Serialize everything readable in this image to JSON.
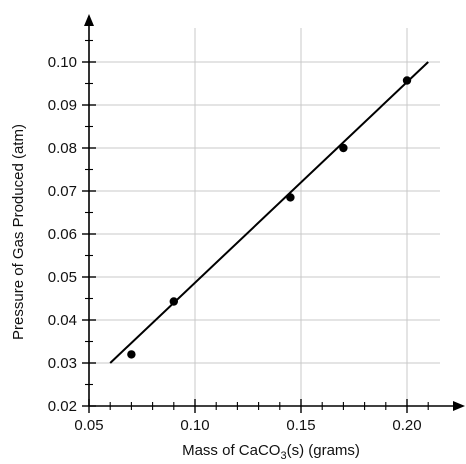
{
  "chart_data": {
    "type": "scatter",
    "title": "",
    "xlabel_parts": [
      "Mass of CaCO",
      "3",
      "(s) (grams)"
    ],
    "ylabel": "Pressure of Gas Produced (atm)",
    "xlim": [
      0.05,
      0.22
    ],
    "ylim": [
      0.02,
      0.105
    ],
    "x_ticks": [
      "0.05",
      "0.10",
      "0.15",
      "0.20"
    ],
    "y_ticks": [
      "0.02",
      "0.03",
      "0.04",
      "0.05",
      "0.06",
      "0.07",
      "0.08",
      "0.09",
      "0.10"
    ],
    "grid": true,
    "points": [
      {
        "x": 0.07,
        "y": 0.032
      },
      {
        "x": 0.09,
        "y": 0.0443
      },
      {
        "x": 0.145,
        "y": 0.0685
      },
      {
        "x": 0.17,
        "y": 0.08
      },
      {
        "x": 0.2,
        "y": 0.0957
      }
    ],
    "fit_line": {
      "x1": 0.06,
      "y1": 0.03,
      "x2": 0.21,
      "y2": 0.1
    },
    "colors": {
      "points": "#000000",
      "line": "#000000",
      "grid": "#c8c8c8"
    }
  }
}
